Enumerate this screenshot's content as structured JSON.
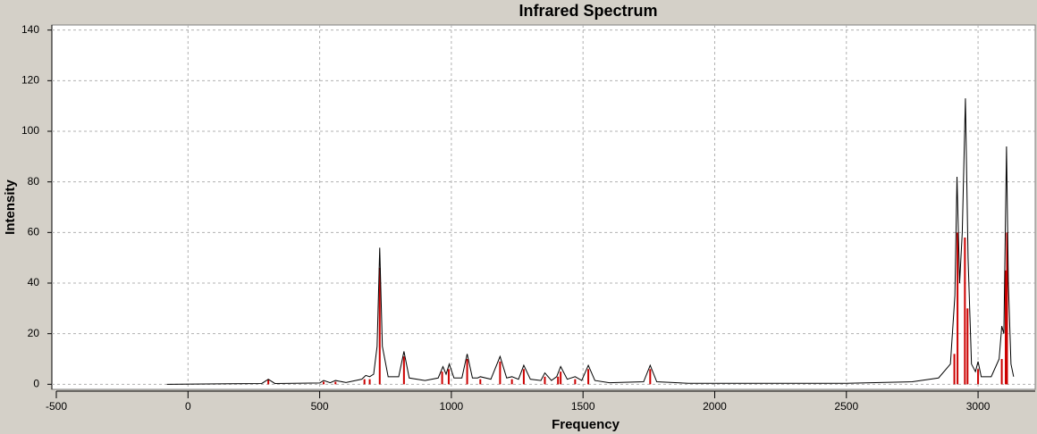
{
  "chart_data": {
    "type": "line",
    "title": "Infrared Spectrum",
    "x_label": "Frequency",
    "y_label": "Intensity",
    "xlim": [
      -517,
      3217
    ],
    "ylim": [
      -2,
      142
    ],
    "xticks": [
      -500,
      0,
      500,
      1000,
      1500,
      2000,
      2500,
      3000
    ],
    "yticks": [
      0,
      20,
      40,
      60,
      80,
      100,
      120,
      140
    ],
    "grid": true,
    "spectrum": {
      "color": "#000000",
      "x": [
        -80,
        280,
        305,
        330,
        500,
        515,
        540,
        560,
        600,
        660,
        675,
        690,
        705,
        718,
        728,
        738,
        760,
        800,
        820,
        840,
        900,
        950,
        968,
        980,
        992,
        1010,
        1040,
        1060,
        1080,
        1100,
        1110,
        1150,
        1185,
        1210,
        1230,
        1255,
        1275,
        1300,
        1340,
        1355,
        1380,
        1400,
        1415,
        1440,
        1470,
        1495,
        1520,
        1545,
        1600,
        1730,
        1755,
        1780,
        1900,
        2500,
        2750,
        2850,
        2895,
        2912,
        2920,
        2930,
        2940,
        2952,
        2962,
        2975,
        2990,
        3000,
        3012,
        3050,
        3080,
        3090,
        3098,
        3108,
        3115,
        3125,
        3135
      ],
      "values": [
        0,
        0.3,
        2,
        0.3,
        0.5,
        1.5,
        0.6,
        1.5,
        0.7,
        2,
        3.5,
        3,
        4,
        15,
        54,
        15,
        3,
        3,
        13,
        2.5,
        1.5,
        2.5,
        7,
        4,
        8,
        2.5,
        2.5,
        12,
        2.5,
        2.5,
        3,
        2,
        11,
        2.5,
        3,
        2,
        7.5,
        2,
        1.5,
        4.5,
        1.5,
        3,
        7,
        2,
        3,
        1.5,
        7.5,
        1.5,
        0.6,
        1,
        7.5,
        1,
        0.4,
        0.4,
        1,
        2.5,
        8,
        35,
        82,
        40,
        60,
        113,
        50,
        8,
        5,
        9,
        3,
        3,
        10,
        23,
        20,
        94,
        40,
        8,
        3
      ]
    },
    "peaks": {
      "color": "#cc0000",
      "x": [
        305,
        515,
        560,
        670,
        690,
        728,
        820,
        965,
        990,
        1060,
        1110,
        1185,
        1230,
        1275,
        1355,
        1405,
        1415,
        1470,
        1520,
        1755,
        2910,
        2922,
        2950,
        2960,
        3000,
        3090,
        3105,
        3110
      ],
      "values": [
        2,
        1,
        1,
        2,
        2,
        46,
        11,
        5,
        6,
        10,
        2,
        9,
        2,
        6,
        3,
        3,
        5,
        2,
        6,
        6,
        12,
        60,
        58,
        30,
        6,
        10,
        45,
        60
      ]
    }
  }
}
